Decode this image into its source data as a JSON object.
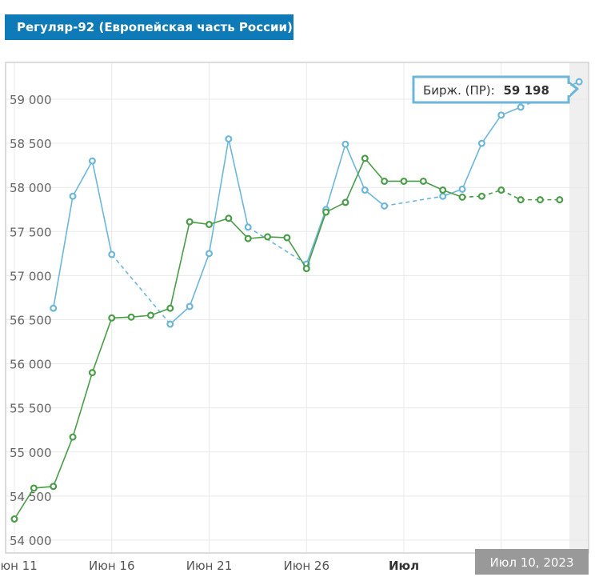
{
  "title": "Регуляр-92 (Европейская часть России)",
  "tooltip": {
    "label": "Бирж. (ПР):",
    "value": "59 198"
  },
  "range_label": "Июл 10, 2023",
  "colors": {
    "exchange": "#6cb7d9",
    "market": "#4a9d48",
    "title_bg": "#0e7bb8",
    "grid": "#e9e9e9"
  },
  "chart_data": {
    "type": "line",
    "title": "Регуляр-92 (Европейская часть России)",
    "ylim": [
      54000,
      59200
    ],
    "y_ticks": [
      54000,
      54500,
      55000,
      55500,
      56000,
      56500,
      57000,
      57500,
      58000,
      58500,
      59000
    ],
    "y_tick_labels": [
      "54 000",
      "54 500",
      "55 000",
      "55 500",
      "56 000",
      "56 500",
      "57 000",
      "57 500",
      "58 000",
      "58 500",
      "59 000"
    ],
    "x_ticks": [
      {
        "day": 11,
        "label": "Июн 11",
        "bold": false
      },
      {
        "day": 16,
        "label": "Июн 16",
        "bold": false
      },
      {
        "day": 21,
        "label": "Июн 21",
        "bold": false
      },
      {
        "day": 26,
        "label": "Июн 26",
        "bold": false
      },
      {
        "day": 31,
        "label": "Июл",
        "bold": true
      },
      {
        "day": 36,
        "label": "",
        "bold": false
      }
    ],
    "series": [
      {
        "name": "Бирж. (ПР)",
        "color": "#6cb7d9",
        "points": [
          [
            13,
            56630
          ],
          [
            14,
            57900
          ],
          [
            15,
            58300
          ],
          [
            16,
            57240
          ],
          [
            19,
            56450
          ],
          [
            20,
            56650
          ],
          [
            21,
            57250
          ],
          [
            22,
            58550
          ],
          [
            23,
            57550
          ],
          [
            26,
            57130
          ],
          [
            27,
            57750
          ],
          [
            28,
            58490
          ],
          [
            29,
            57970
          ],
          [
            30,
            57790
          ],
          [
            33,
            57900
          ],
          [
            34,
            57980
          ],
          [
            35,
            58500
          ],
          [
            36,
            58820
          ],
          [
            37,
            58910
          ],
          [
            40,
            59198
          ]
        ],
        "dashed_gaps": [
          [
            16,
            19
          ],
          [
            23,
            26
          ],
          [
            30,
            33
          ],
          [
            37,
            40
          ]
        ]
      },
      {
        "name": "",
        "color": "#4a9d48",
        "points": [
          [
            11,
            54240
          ],
          [
            12,
            54590
          ],
          [
            13,
            54610
          ],
          [
            14,
            55170
          ],
          [
            15,
            55900
          ],
          [
            16,
            56520
          ],
          [
            17,
            56530
          ],
          [
            18,
            56550
          ],
          [
            19,
            56630
          ],
          [
            20,
            57610
          ],
          [
            21,
            57580
          ],
          [
            22,
            57650
          ],
          [
            23,
            57420
          ],
          [
            24,
            57440
          ],
          [
            25,
            57430
          ],
          [
            26,
            57080
          ],
          [
            27,
            57720
          ],
          [
            28,
            57830
          ],
          [
            29,
            58330
          ],
          [
            30,
            58070
          ],
          [
            31,
            58070
          ],
          [
            32,
            58070
          ],
          [
            33,
            57970
          ],
          [
            34,
            57890
          ],
          [
            35,
            57900
          ],
          [
            36,
            57970
          ],
          [
            37,
            57860
          ],
          [
            38,
            57860
          ],
          [
            39,
            57860
          ]
        ],
        "dashed_from": 34
      }
    ]
  }
}
